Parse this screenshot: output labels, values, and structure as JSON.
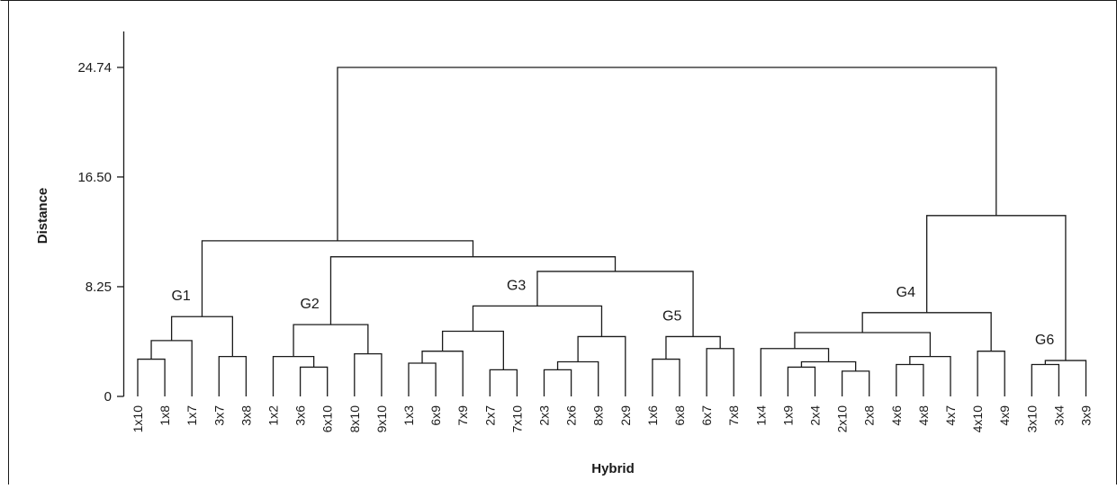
{
  "chart_data": {
    "type": "dendrogram",
    "xlabel": "Hybrid",
    "ylabel": "Distance",
    "ylim": [
      0,
      24.74
    ],
    "yticks": [
      "0",
      "8.25",
      "16.50",
      "24.74"
    ],
    "leaves": [
      "1x10",
      "1x8",
      "1x7",
      "3x7",
      "3x8",
      "1x2",
      "3x6",
      "6x10",
      "8x10",
      "9x10",
      "1x3",
      "6x9",
      "7x9",
      "2x7",
      "7x10",
      "2x3",
      "2x6",
      "8x9",
      "2x9",
      "1x6",
      "6x8",
      "6x7",
      "7x8",
      "1x4",
      "1x9",
      "2x4",
      "2x10",
      "2x8",
      "4x6",
      "4x8",
      "4x7",
      "4x10",
      "4x9",
      "3x10",
      "3x4",
      "3x9"
    ],
    "groups": [
      {
        "name": "G1",
        "node": "g1"
      },
      {
        "name": "G2",
        "node": "g2"
      },
      {
        "name": "G3",
        "node": "g3"
      },
      {
        "name": "G5",
        "node": "g5"
      },
      {
        "name": "G4",
        "node": "g4"
      },
      {
        "name": "G6",
        "node": "g6"
      }
    ],
    "merges": [
      {
        "id": "a1",
        "children": [
          "1x10",
          "1x8"
        ],
        "height": 2.8
      },
      {
        "id": "a2",
        "children": [
          "a1",
          "1x7"
        ],
        "height": 4.2
      },
      {
        "id": "a3",
        "children": [
          "3x7",
          "3x8"
        ],
        "height": 3.0
      },
      {
        "id": "g1",
        "children": [
          "a2",
          "a3"
        ],
        "height": 6.0
      },
      {
        "id": "b1",
        "children": [
          "3x6",
          "6x10"
        ],
        "height": 2.2
      },
      {
        "id": "b2",
        "children": [
          "1x2",
          "b1"
        ],
        "height": 3.0
      },
      {
        "id": "b3",
        "children": [
          "8x10",
          "9x10"
        ],
        "height": 3.2
      },
      {
        "id": "g2",
        "children": [
          "b2",
          "b3"
        ],
        "height": 5.4
      },
      {
        "id": "c1",
        "children": [
          "1x3",
          "6x9"
        ],
        "height": 2.5
      },
      {
        "id": "c2",
        "children": [
          "c1",
          "7x9"
        ],
        "height": 3.4
      },
      {
        "id": "c3",
        "children": [
          "2x7",
          "7x10"
        ],
        "height": 2.0
      },
      {
        "id": "c4",
        "children": [
          "c2",
          "c3"
        ],
        "height": 4.9
      },
      {
        "id": "c5",
        "children": [
          "2x3",
          "2x6"
        ],
        "height": 2.0
      },
      {
        "id": "c6",
        "children": [
          "c5",
          "8x9"
        ],
        "height": 2.6
      },
      {
        "id": "c7",
        "children": [
          "c6",
          "2x9"
        ],
        "height": 4.5
      },
      {
        "id": "g3",
        "children": [
          "c4",
          "c7"
        ],
        "height": 6.8
      },
      {
        "id": "d1",
        "children": [
          "1x6",
          "6x8"
        ],
        "height": 2.8
      },
      {
        "id": "d2",
        "children": [
          "6x7",
          "7x8"
        ],
        "height": 3.6
      },
      {
        "id": "g5",
        "children": [
          "d1",
          "d2"
        ],
        "height": 4.5
      },
      {
        "id": "m1",
        "children": [
          "g3",
          "g5"
        ],
        "height": 9.4
      },
      {
        "id": "m2",
        "children": [
          "g2",
          "m1"
        ],
        "height": 10.5
      },
      {
        "id": "m3",
        "children": [
          "g1",
          "m2"
        ],
        "height": 11.7
      },
      {
        "id": "e1",
        "children": [
          "1x9",
          "2x4"
        ],
        "height": 2.2
      },
      {
        "id": "e2",
        "children": [
          "2x10",
          "2x8"
        ],
        "height": 1.9
      },
      {
        "id": "e3",
        "children": [
          "e1",
          "e2"
        ],
        "height": 2.6
      },
      {
        "id": "e4",
        "children": [
          "1x4",
          "e3"
        ],
        "height": 3.6
      },
      {
        "id": "e5",
        "children": [
          "4x6",
          "4x8"
        ],
        "height": 2.4
      },
      {
        "id": "e6",
        "children": [
          "e5",
          "4x7"
        ],
        "height": 3.0
      },
      {
        "id": "e7",
        "children": [
          "e4",
          "e6"
        ],
        "height": 4.8
      },
      {
        "id": "e8",
        "children": [
          "4x10",
          "4x9"
        ],
        "height": 3.4
      },
      {
        "id": "g4",
        "children": [
          "e7",
          "e8"
        ],
        "height": 6.3
      },
      {
        "id": "f1",
        "children": [
          "3x10",
          "3x4"
        ],
        "height": 2.4
      },
      {
        "id": "g6",
        "children": [
          "f1",
          "3x9"
        ],
        "height": 2.7
      },
      {
        "id": "m4",
        "children": [
          "g4",
          "g6"
        ],
        "height": 13.6
      },
      {
        "id": "root",
        "children": [
          "m3",
          "m4"
        ],
        "height": 24.74
      }
    ]
  }
}
